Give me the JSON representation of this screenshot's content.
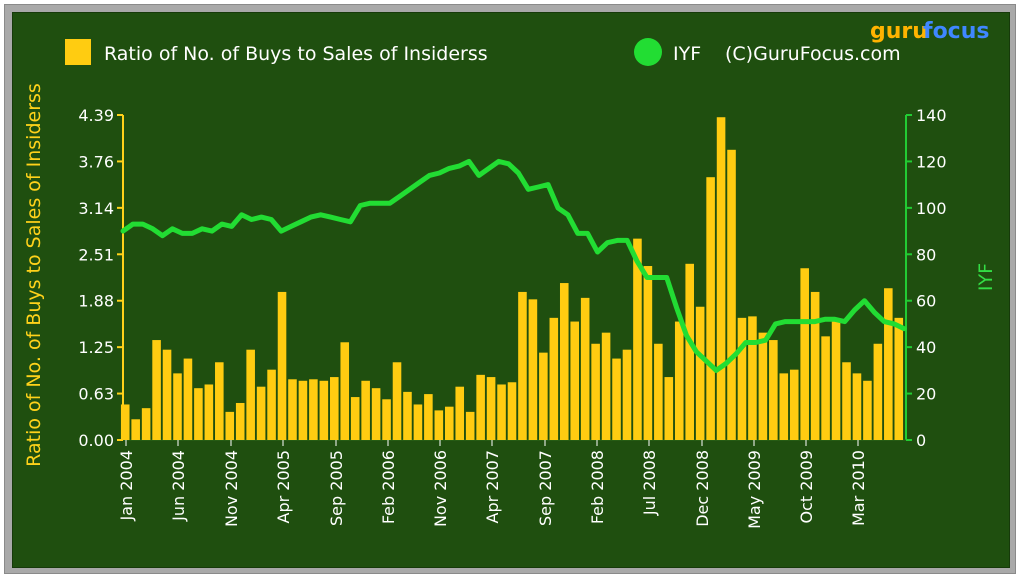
{
  "branding": {
    "logo_part1": "guru",
    "logo_part2": "focus"
  },
  "legend": {
    "bars_label": "Ratio of No. of Buys to Sales of Insiderss",
    "line_label": "IYF",
    "copyright": "(C)GuruFocus.com"
  },
  "colors": {
    "bars": "#ffcc11",
    "line": "#22dd33",
    "background": "#1f4f0f",
    "frame": "#a9a9a9",
    "left_axis": "#ffd21a",
    "right_axis": "#22cc33"
  },
  "chart_data": {
    "type": "bar+line",
    "title": "",
    "ylabel": "Ratio of No. of Buys to Sales of Insiderss",
    "y2label": "IYF",
    "ylim": [
      0,
      4.39
    ],
    "y2lim": [
      0,
      140
    ],
    "yticks": [
      "4.39",
      "3.76",
      "3.14",
      "2.51",
      "1.88",
      "1.25",
      "0.63",
      "0.00"
    ],
    "y2ticks": [
      "140",
      "120",
      "100",
      "80",
      "60",
      "40",
      "20",
      "0"
    ],
    "x_tick_labels": [
      "Jan 2004",
      "Jun 2004",
      "Nov 2004",
      "Apr 2005",
      "Sep 2005",
      "Feb 2006",
      "Nov 2006",
      "Apr 2007",
      "Sep 2007",
      "Feb 2008",
      "Jul 2008",
      "Dec 2008",
      "May 2009",
      "Oct 2009",
      "Mar 2010"
    ],
    "legend_position": "top",
    "grid": false,
    "series": [
      {
        "name": "Ratio of No. of Buys to Sales of Insiderss",
        "type": "bar",
        "values": [
          0.48,
          0.28,
          0.43,
          1.35,
          1.22,
          0.9,
          1.1,
          0.7,
          0.75,
          1.05,
          0.38,
          0.5,
          1.22,
          0.72,
          0.95,
          2.0,
          0.82,
          0.8,
          0.82,
          0.8,
          0.85,
          1.32,
          0.58,
          0.8,
          0.7,
          0.55,
          1.05,
          0.65,
          0.48,
          0.62,
          0.4,
          0.45,
          0.72,
          0.38,
          0.88,
          0.85,
          0.75,
          0.78,
          2.0,
          1.9,
          1.18,
          1.65,
          2.12,
          1.6,
          1.92,
          1.3,
          1.45,
          1.1,
          1.22,
          2.72,
          2.35,
          1.3,
          0.85,
          1.6,
          2.38,
          1.8,
          3.55,
          4.36,
          3.92,
          1.65,
          1.67,
          1.45,
          1.35,
          0.9,
          0.95,
          2.32,
          2.0,
          1.4,
          1.62,
          1.05,
          0.9,
          0.8,
          1.3,
          2.05,
          1.65
        ]
      },
      {
        "name": "IYF",
        "type": "line",
        "values": [
          90,
          93,
          93,
          91,
          88,
          91,
          89,
          89,
          91,
          90,
          93,
          92,
          97,
          95,
          96,
          95,
          90,
          92,
          94,
          96,
          97,
          96,
          95,
          94,
          101,
          102,
          102,
          102,
          105,
          108,
          111,
          114,
          115,
          117,
          118,
          120,
          114,
          117,
          120,
          119,
          115,
          108,
          109,
          110,
          100,
          97,
          89,
          89,
          81,
          85,
          86,
          86,
          77,
          70,
          70,
          70,
          57,
          45,
          38,
          34,
          30,
          33,
          37,
          42,
          42,
          43,
          50,
          51,
          51,
          51,
          51,
          52,
          52,
          51,
          56,
          60,
          55,
          51,
          50,
          48
        ]
      }
    ]
  }
}
